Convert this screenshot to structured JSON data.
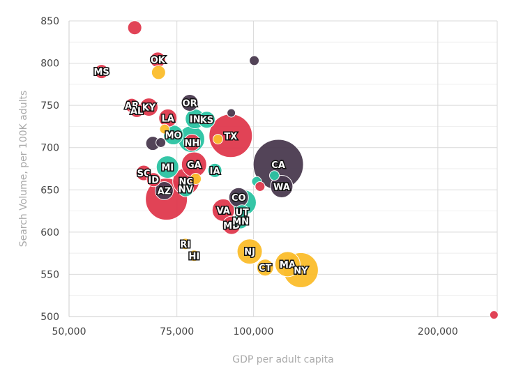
{
  "chart_data": {
    "type": "scatter",
    "title": "",
    "xlabel": "GDP per adult capita",
    "ylabel": "Search Volume, per 100K adults",
    "xlim": [
      50000,
      250000
    ],
    "ylim": [
      500,
      850
    ],
    "x_scale": "log",
    "x_ticks": [
      50000,
      75000,
      100000,
      200000
    ],
    "x_tick_labels": [
      "50,000",
      "75,000",
      "100,000",
      "200,000"
    ],
    "y_ticks": [
      500,
      550,
      600,
      650,
      700,
      750,
      800,
      850
    ],
    "y_tick_labels": [
      "500",
      "550",
      "600",
      "650",
      "700",
      "750",
      "800",
      "850"
    ],
    "grid": true,
    "colors": {
      "red": "#e0394e",
      "dark": "#4a3a50",
      "teal": "#2bc4a3",
      "yellow": "#fbbd2c",
      "grid": "#d9d9d9",
      "axis": "#cccccc"
    },
    "points": [
      {
        "label": "",
        "x": 64000,
        "y": 842,
        "size": 1.0,
        "color": "red"
      },
      {
        "label": "OK",
        "x": 69800,
        "y": 804,
        "size": 1.1,
        "color": "red"
      },
      {
        "label": "",
        "x": 70000,
        "y": 789,
        "size": 1.0,
        "color": "yellow"
      },
      {
        "label": "",
        "x": 100300,
        "y": 803,
        "size": 0.7,
        "color": "dark"
      },
      {
        "label": "MS",
        "x": 56500,
        "y": 790,
        "size": 1.0,
        "color": "red"
      },
      {
        "label": "AR",
        "x": 63300,
        "y": 750,
        "size": 1.0,
        "color": "red"
      },
      {
        "label": "AL",
        "x": 64500,
        "y": 744,
        "size": 1.0,
        "color": "red"
      },
      {
        "label": "KY",
        "x": 67500,
        "y": 748,
        "size": 1.3,
        "color": "red"
      },
      {
        "label": "OR",
        "x": 78700,
        "y": 753,
        "size": 1.2,
        "color": "dark"
      },
      {
        "label": "",
        "x": 92000,
        "y": 741,
        "size": 0.6,
        "color": "dark"
      },
      {
        "label": "LA",
        "x": 72500,
        "y": 735,
        "size": 1.3,
        "color": "red"
      },
      {
        "label": "",
        "x": 71600,
        "y": 722,
        "size": 0.7,
        "color": "yellow"
      },
      {
        "label": "IN",
        "x": 80300,
        "y": 734,
        "size": 1.4,
        "color": "teal"
      },
      {
        "label": "KS",
        "x": 83900,
        "y": 733,
        "size": 1.2,
        "color": "teal"
      },
      {
        "label": "MO",
        "x": 74000,
        "y": 715,
        "size": 1.4,
        "color": "teal"
      },
      {
        "label": "",
        "x": 79200,
        "y": 710,
        "size": 1.9,
        "color": "teal"
      },
      {
        "label": "NH",
        "x": 79400,
        "y": 706,
        "size": 1.2,
        "color": "red"
      },
      {
        "label": "TX",
        "x": 91800,
        "y": 714,
        "size": 3.1,
        "color": "red"
      },
      {
        "label": "",
        "x": 87500,
        "y": 710,
        "size": 0.7,
        "color": "yellow"
      },
      {
        "label": "",
        "x": 68500,
        "y": 705,
        "size": 1.0,
        "color": "dark"
      },
      {
        "label": "",
        "x": 70600,
        "y": 706,
        "size": 0.7,
        "color": "dark"
      },
      {
        "label": "SC",
        "x": 66200,
        "y": 670,
        "size": 1.1,
        "color": "red"
      },
      {
        "label": "ID",
        "x": 68700,
        "y": 662,
        "size": 1.0,
        "color": "red"
      },
      {
        "label": "MI",
        "x": 72400,
        "y": 677,
        "size": 1.6,
        "color": "teal"
      },
      {
        "label": "GA",
        "x": 80000,
        "y": 680,
        "size": 1.8,
        "color": "red"
      },
      {
        "label": "IA",
        "x": 86500,
        "y": 673,
        "size": 1.0,
        "color": "teal"
      },
      {
        "label": "NC",
        "x": 77600,
        "y": 660,
        "size": 1.9,
        "color": "red"
      },
      {
        "label": "",
        "x": 80500,
        "y": 663,
        "size": 0.8,
        "color": "yellow"
      },
      {
        "label": "NV",
        "x": 77500,
        "y": 651,
        "size": 1.1,
        "color": "teal"
      },
      {
        "label": "AZ",
        "x": 71500,
        "y": 649,
        "size": 1.3,
        "color": "dark"
      },
      {
        "label": "",
        "x": 72100,
        "y": 639,
        "size": 3.0,
        "color": "red"
      },
      {
        "label": "CA",
        "x": 109800,
        "y": 680,
        "size": 3.6,
        "color": "dark"
      },
      {
        "label": "",
        "x": 108200,
        "y": 667,
        "size": 0.7,
        "color": "teal"
      },
      {
        "label": "",
        "x": 101200,
        "y": 660,
        "size": 0.7,
        "color": "teal"
      },
      {
        "label": "",
        "x": 102500,
        "y": 654,
        "size": 0.7,
        "color": "red"
      },
      {
        "label": "WA",
        "x": 111200,
        "y": 654,
        "size": 1.6,
        "color": "dark"
      },
      {
        "label": "CO",
        "x": 94600,
        "y": 641,
        "size": 1.4,
        "color": "dark"
      },
      {
        "label": "",
        "x": 96400,
        "y": 635,
        "size": 1.8,
        "color": "teal"
      },
      {
        "label": "VA",
        "x": 89300,
        "y": 626,
        "size": 1.6,
        "color": "red"
      },
      {
        "label": "UT",
        "x": 95800,
        "y": 624,
        "size": 1.0,
        "color": "teal"
      },
      {
        "label": "MD",
        "x": 92100,
        "y": 608,
        "size": 1.3,
        "color": "red"
      },
      {
        "label": "MN",
        "x": 95300,
        "y": 613,
        "size": 1.1,
        "color": "teal"
      },
      {
        "label": "RI",
        "x": 77400,
        "y": 586,
        "size": 0.8,
        "color": "yellow"
      },
      {
        "label": "HI",
        "x": 80000,
        "y": 572,
        "size": 0.8,
        "color": "yellow"
      },
      {
        "label": "NJ",
        "x": 98600,
        "y": 577,
        "size": 1.8,
        "color": "yellow"
      },
      {
        "label": "CT",
        "x": 104500,
        "y": 558,
        "size": 1.2,
        "color": "yellow"
      },
      {
        "label": "MA",
        "x": 113700,
        "y": 562,
        "size": 1.8,
        "color": "yellow"
      },
      {
        "label": "NY",
        "x": 119500,
        "y": 555,
        "size": 2.5,
        "color": "yellow"
      },
      {
        "label": "",
        "x": 247000,
        "y": 502,
        "size": 0.6,
        "color": "red"
      }
    ]
  }
}
